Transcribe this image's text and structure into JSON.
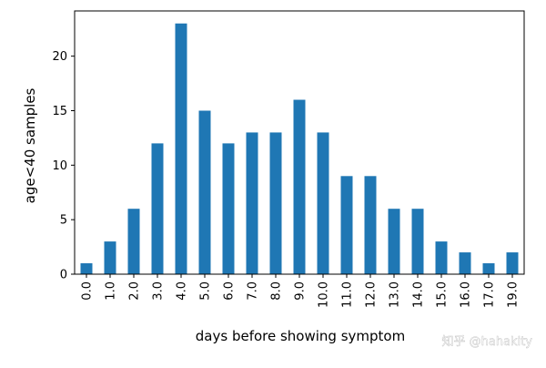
{
  "chart_data": {
    "type": "bar",
    "categories": [
      "0.0",
      "1.0",
      "2.0",
      "3.0",
      "4.0",
      "5.0",
      "6.0",
      "7.0",
      "8.0",
      "9.0",
      "10.0",
      "11.0",
      "12.0",
      "13.0",
      "14.0",
      "15.0",
      "16.0",
      "17.0",
      "19.0"
    ],
    "values": [
      1,
      3,
      6,
      12,
      23,
      15,
      12,
      13,
      13,
      16,
      13,
      9,
      9,
      6,
      6,
      3,
      2,
      1,
      2
    ],
    "title": "",
    "xlabel": "days before showing symptom",
    "ylabel": "age<40 samples",
    "ylim": [
      0,
      24.15
    ],
    "yticks": [
      0,
      5,
      10,
      15,
      20
    ],
    "bar_color": "#1f77b4",
    "grid": false,
    "legend": "none"
  },
  "watermark": {
    "text": "知乎 @hahakity"
  }
}
